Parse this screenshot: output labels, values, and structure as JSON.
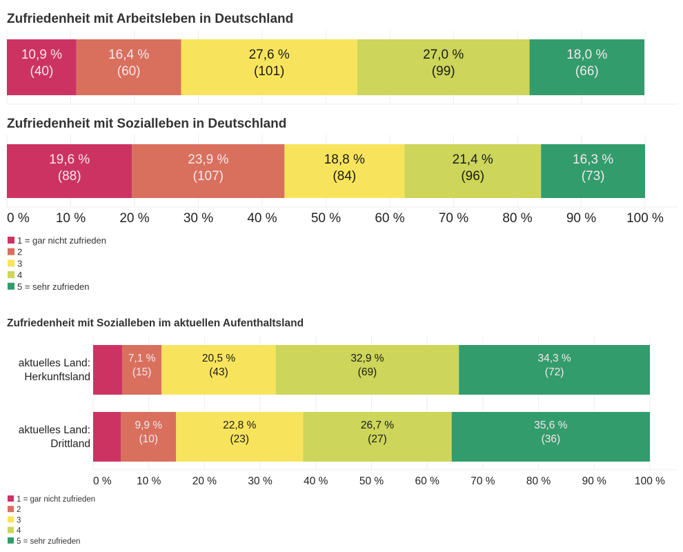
{
  "colors": {
    "1": "#CC3363",
    "2": "#D9705E",
    "3": "#F8E45C",
    "4": "#CDD55A",
    "5": "#339C6C",
    "label_light": "#F5E8EC",
    "label_dark": "#1a1a1a"
  },
  "legend": [
    {
      "key": "1",
      "label": "1 = gar nicht zufrieden"
    },
    {
      "key": "2",
      "label": "2"
    },
    {
      "key": "3",
      "label": "3"
    },
    {
      "key": "4",
      "label": "4"
    },
    {
      "key": "5",
      "label": "5 = sehr zufrieden"
    }
  ],
  "chart_data": [
    {
      "type": "bar",
      "orientation": "horizontal-stacked-100",
      "title": "Zufriedenheit mit Arbeitsleben in Deutschland",
      "categories": [
        ""
      ],
      "series": [
        {
          "name": "1 = gar nicht zufrieden",
          "values": [
            10.9
          ],
          "counts": [
            40
          ],
          "labels": [
            "10,9 %"
          ],
          "count_labels": [
            "(40)"
          ]
        },
        {
          "name": "2",
          "values": [
            16.4
          ],
          "counts": [
            60
          ],
          "labels": [
            "16,4 %"
          ],
          "count_labels": [
            "(60)"
          ]
        },
        {
          "name": "3",
          "values": [
            27.6
          ],
          "counts": [
            101
          ],
          "labels": [
            "27,6 %"
          ],
          "count_labels": [
            "(101)"
          ]
        },
        {
          "name": "4",
          "values": [
            27.0
          ],
          "counts": [
            99
          ],
          "labels": [
            "27,0 %"
          ],
          "count_labels": [
            "(99)"
          ]
        },
        {
          "name": "5 = sehr zufrieden",
          "values": [
            18.0
          ],
          "counts": [
            66
          ],
          "labels": [
            "18,0 %"
          ],
          "count_labels": [
            "(66)"
          ]
        }
      ],
      "xlim": [
        0,
        100
      ],
      "grid": true
    },
    {
      "type": "bar",
      "orientation": "horizontal-stacked-100",
      "title": "Zufriedenheit mit Sozialleben in Deutschland",
      "categories": [
        ""
      ],
      "series": [
        {
          "name": "1 = gar nicht zufrieden",
          "values": [
            19.6
          ],
          "counts": [
            88
          ],
          "labels": [
            "19,6 %"
          ],
          "count_labels": [
            "(88)"
          ]
        },
        {
          "name": "2",
          "values": [
            23.9
          ],
          "counts": [
            107
          ],
          "labels": [
            "23,9 %"
          ],
          "count_labels": [
            "(107)"
          ]
        },
        {
          "name": "3",
          "values": [
            18.8
          ],
          "counts": [
            84
          ],
          "labels": [
            "18,8 %"
          ],
          "count_labels": [
            "(84)"
          ]
        },
        {
          "name": "4",
          "values": [
            21.4
          ],
          "counts": [
            96
          ],
          "labels": [
            "21,4 %"
          ],
          "count_labels": [
            "(96)"
          ]
        },
        {
          "name": "5 = sehr zufrieden",
          "values": [
            16.3
          ],
          "counts": [
            73
          ],
          "labels": [
            "16,3 %"
          ],
          "count_labels": [
            "(73)"
          ]
        }
      ],
      "xlim": [
        0,
        100
      ],
      "xticks": [
        "0 %",
        "10 %",
        "20 %",
        "30 %",
        "40 %",
        "50 %",
        "60 %",
        "70 %",
        "80 %",
        "90 %",
        "100 %"
      ],
      "grid": true,
      "legend": "bottom-left"
    },
    {
      "type": "bar",
      "orientation": "horizontal-stacked-100",
      "title": "Zufriedenheit mit Sozialleben im aktuellen Aufenthaltsland",
      "categories": [
        [
          "aktuelles Land:",
          "Herkunftsland"
        ],
        [
          "aktuelles Land:",
          "Drittland"
        ]
      ],
      "series": [
        {
          "name": "1 = gar nicht zufrieden",
          "values": [
            5.2,
            5.0
          ],
          "counts": [
            null,
            null
          ],
          "labels": [
            "",
            ""
          ],
          "count_labels": [
            "",
            ""
          ]
        },
        {
          "name": "2",
          "values": [
            7.1,
            9.9
          ],
          "counts": [
            15,
            10
          ],
          "labels": [
            "7,1 %",
            "9,9 %"
          ],
          "count_labels": [
            "(15)",
            "(10)"
          ]
        },
        {
          "name": "3",
          "values": [
            20.5,
            22.8
          ],
          "counts": [
            43,
            23
          ],
          "labels": [
            "20,5 %",
            "22,8 %"
          ],
          "count_labels": [
            "(43)",
            "(23)"
          ]
        },
        {
          "name": "4",
          "values": [
            32.9,
            26.7
          ],
          "counts": [
            69,
            27
          ],
          "labels": [
            "32,9 %",
            "26,7 %"
          ],
          "count_labels": [
            "(69)",
            "(27)"
          ]
        },
        {
          "name": "5 = sehr zufrieden",
          "values": [
            34.3,
            35.6
          ],
          "counts": [
            72,
            36
          ],
          "labels": [
            "34,3 %",
            "35,6 %"
          ],
          "count_labels": [
            "(72)",
            "(36)"
          ]
        }
      ],
      "xlim": [
        0,
        100
      ],
      "xticks": [
        "0 %",
        "10 %",
        "20 %",
        "30 %",
        "40 %",
        "50 %",
        "60 %",
        "70 %",
        "80 %",
        "90 %",
        "100 %"
      ],
      "grid": true,
      "legend": "bottom-left"
    }
  ]
}
